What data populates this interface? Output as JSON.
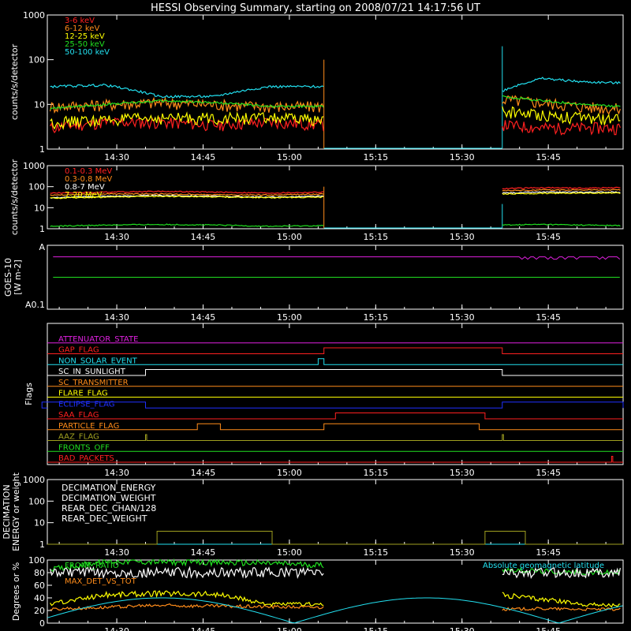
{
  "title": "HESSI Observing Summary, starting on 2008/07/21 14:17:56 UT",
  "time_ticks": [
    "14:30",
    "14:45",
    "15:00",
    "15:15",
    "15:30",
    "15:45"
  ],
  "chart_data": [
    {
      "type": "line",
      "panel": "rate-low",
      "ylabel": "counts/s/detector",
      "yscale": "log",
      "ylim": [
        1,
        1000
      ],
      "yticks": [
        "1000",
        "100",
        "10",
        "1"
      ],
      "x_range": [
        "14:17:56",
        "15:58"
      ],
      "gap": [
        "15:06",
        "15:37"
      ],
      "series": [
        {
          "name": "3-6 keV",
          "color": "#ff2020",
          "before_gap": [
            3,
            4,
            4,
            3.5,
            4,
            3.5
          ],
          "after_gap": [
            3.5,
            3,
            3,
            3
          ]
        },
        {
          "name": "6-12 keV",
          "color": "#ff8c1a",
          "before_gap": [
            9,
            10,
            11,
            10,
            9,
            9
          ],
          "after_gap": [
            13,
            11,
            9,
            8
          ]
        },
        {
          "name": "12-25 keV",
          "color": "#ffff00",
          "before_gap": [
            4,
            4.5,
            5,
            5,
            5,
            4.5
          ],
          "after_gap": [
            7,
            6,
            5,
            4.5
          ]
        },
        {
          "name": "25-50 keV",
          "color": "#20e020",
          "before_gap": [
            8,
            10,
            12,
            11,
            9,
            9
          ],
          "after_gap": [
            15,
            12,
            10,
            9
          ]
        },
        {
          "name": "50-100 keV",
          "color": "#22e0f0",
          "before_gap": [
            25,
            27,
            15,
            15,
            25,
            25
          ],
          "after_gap": [
            20,
            38,
            32,
            30
          ]
        }
      ]
    },
    {
      "type": "line",
      "panel": "rate-high",
      "ylabel": "counts/s/detector",
      "yscale": "log",
      "ylim": [
        1,
        1000
      ],
      "yticks": [
        "1000",
        "100",
        "10",
        "1"
      ],
      "series": [
        {
          "name": "0.1-0.3 MeV",
          "color": "#ff2020",
          "before_gap": [
            50,
            55,
            60,
            55,
            50,
            55
          ],
          "after_gap": [
            80,
            90,
            85,
            90
          ]
        },
        {
          "name": "0.3-0.8 MeV",
          "color": "#ff8c1a",
          "before_gap": [
            40,
            45,
            45,
            42,
            40,
            45
          ],
          "after_gap": [
            65,
            70,
            70,
            70
          ]
        },
        {
          "name": "0.8-7 MeV",
          "color": "#ffffff",
          "before_gap": [
            30,
            35,
            38,
            35,
            32,
            35
          ],
          "after_gap": [
            50,
            55,
            55,
            55
          ]
        },
        {
          "name": "7-20 MeV",
          "color": "#ffff00",
          "before_gap": [
            28,
            32,
            35,
            33,
            30,
            32
          ],
          "after_gap": [
            45,
            48,
            50,
            50
          ]
        },
        {
          "name": "",
          "color": "#20e020",
          "before_gap": [
            1.3,
            1.5,
            1.6,
            1.5,
            1.3,
            1.4
          ],
          "after_gap": [
            1.5,
            1.6,
            1.5,
            1.4
          ]
        }
      ]
    },
    {
      "type": "line",
      "panel": "goes",
      "ylabel": "GOES-10",
      "yunit": "[W m-2]",
      "ytick_top": "A",
      "ytick_bottom": "A0.1",
      "series": [
        {
          "color": "#e020e0",
          "level": 0.82
        },
        {
          "color": "#20e020",
          "level": 0.5
        }
      ]
    },
    {
      "type": "line",
      "panel": "flags",
      "ylabel": "Flags",
      "flags": [
        {
          "name": "ATTENUATOR_STATE",
          "color": "#e020e0",
          "steps": []
        },
        {
          "name": "GAP_FLAG",
          "color": "#ff2020",
          "steps": [
            [
              "15:06",
              "15:37"
            ]
          ]
        },
        {
          "name": "NON_SOLAR_EVENT",
          "color": "#22e0f0",
          "steps": [
            [
              "15:05",
              "15:06"
            ]
          ]
        },
        {
          "name": "SC_IN_SUNLIGHT",
          "color": "#ffffff",
          "steps": [
            [
              "14:35",
              "15:37"
            ]
          ]
        },
        {
          "name": "SC_TRANSMITTER",
          "color": "#ff8c1a",
          "steps": []
        },
        {
          "name": "FLARE_FLAG",
          "color": "#ffff00",
          "steps": []
        },
        {
          "name": "ECLIPSE_FLAG",
          "color": "#2030ff",
          "steps": [
            [
              "14:17",
              "14:35"
            ],
            [
              "15:37",
              "15:58"
            ]
          ]
        },
        {
          "name": "SAA_FLAG",
          "color": "#ff2020",
          "steps": [
            [
              "15:08",
              "15:34"
            ]
          ]
        },
        {
          "name": "PARTICLE_FLAG",
          "color": "#ff8c1a",
          "steps": [
            [
              "14:44",
              "14:48"
            ],
            [
              "15:06",
              "15:33"
            ]
          ]
        },
        {
          "name": "AAZ_FLAG",
          "color": "#a0a020",
          "steps": [
            [
              "14:35",
              "14:35"
            ],
            [
              "15:37",
              "15:37"
            ]
          ]
        },
        {
          "name": "FRONTS_OFF",
          "color": "#20e020",
          "steps": []
        },
        {
          "name": "BAD_PACKETS",
          "color": "#ff2020",
          "steps": [
            [
              "15:56",
              "15:56"
            ]
          ]
        }
      ]
    },
    {
      "type": "line",
      "panel": "decimation",
      "ylabel": "DECIMATION",
      "ylabel2": "ENERGY or weight",
      "yscale": "log",
      "ylim": [
        1,
        1000
      ],
      "yticks": [
        "1000",
        "100",
        "10",
        "1"
      ],
      "series": [
        {
          "name": "DECIMATION_ENERGY",
          "color": "#20e020",
          "steps": []
        },
        {
          "name": "DECIMATION_WEIGHT",
          "color": "#ff8c1a",
          "steps": []
        },
        {
          "name": "REAR_DEC_CHAN/128",
          "color": "#22e0f0",
          "steps": []
        },
        {
          "name": "REAR_DEC_WEIGHT",
          "color": "#a0a020",
          "steps": [
            [
              "14:37",
              "14:57"
            ],
            [
              "15:34",
              "15:41"
            ]
          ],
          "high": 4
        }
      ]
    },
    {
      "type": "line",
      "panel": "ratios",
      "ylabel": "Degrees or %",
      "ylim": [
        0,
        100
      ],
      "yticks": [
        "100",
        "80",
        "60",
        "40",
        "20",
        "0"
      ],
      "series": [
        {
          "name": "FRONT_RATIO",
          "color": "#20e020",
          "before_gap": [
            85,
            98,
            97,
            96,
            95,
            92
          ],
          "after_gap": [
            85,
            82,
            80,
            80
          ]
        },
        {
          "name": "",
          "color": "#ffffff",
          "before_gap": [
            80,
            80,
            80,
            80,
            80,
            80
          ],
          "after_gap": [
            80,
            80,
            80,
            80
          ]
        },
        {
          "name": "MAX_DET_VS_TOT",
          "color": "#ff8c1a",
          "before_gap": [
            22,
            25,
            28,
            27,
            26,
            25
          ],
          "after_gap": [
            22,
            23,
            22,
            22
          ]
        },
        {
          "name": "",
          "color": "#ffff00",
          "before_gap": [
            30,
            45,
            47,
            46,
            30,
            30
          ],
          "after_gap": [
            45,
            38,
            30,
            28
          ]
        },
        {
          "name": "Absolute geomagnetic latitude",
          "color": "#22e0f0",
          "wave": [
            [
              0,
              5
            ],
            [
              30,
              40
            ],
            [
              60,
              0
            ],
            [
              90,
              40
            ],
            [
              120,
              0
            ]
          ]
        }
      ]
    }
  ]
}
